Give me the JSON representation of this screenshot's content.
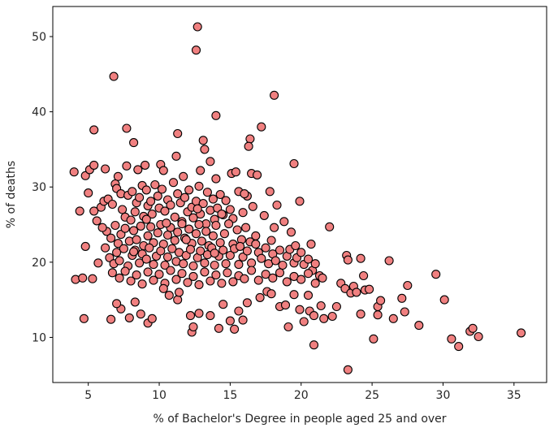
{
  "chart_data": {
    "type": "scatter",
    "title": "",
    "xlabel": "% of Bachelor's Degree in people aged 25 and over",
    "ylabel": "% of deaths",
    "xlim": [
      2.5,
      37.3
    ],
    "ylim": [
      4.0,
      54.0
    ],
    "xticks": [
      5,
      10,
      15,
      20,
      25,
      30,
      35
    ],
    "yticks": [
      10,
      20,
      30,
      40,
      50
    ],
    "grid": false,
    "legend": "none",
    "marker_color": "#F08080",
    "marker_edge": "#000000",
    "points": [
      [
        12.7,
        51.3
      ],
      [
        12.6,
        48.2
      ],
      [
        6.8,
        44.7
      ],
      [
        18.1,
        42.2
      ],
      [
        14.0,
        39.5
      ],
      [
        5.4,
        37.6
      ],
      [
        7.7,
        37.8
      ],
      [
        11.3,
        37.1
      ],
      [
        17.2,
        38.0
      ],
      [
        13.1,
        36.2
      ],
      [
        16.4,
        36.4
      ],
      [
        8.2,
        35.9
      ],
      [
        13.2,
        35.0
      ],
      [
        16.3,
        35.4
      ],
      [
        11.2,
        34.1
      ],
      [
        19.5,
        33.1
      ],
      [
        13.6,
        33.4
      ],
      [
        4.0,
        32.0
      ],
      [
        4.8,
        31.5
      ],
      [
        5.1,
        32.3
      ],
      [
        5.4,
        32.9
      ],
      [
        6.2,
        32.4
      ],
      [
        7.1,
        31.4
      ],
      [
        7.7,
        32.8
      ],
      [
        8.5,
        32.3
      ],
      [
        9.0,
        32.9
      ],
      [
        10.1,
        33.0
      ],
      [
        10.3,
        32.2
      ],
      [
        11.7,
        31.4
      ],
      [
        12.9,
        32.2
      ],
      [
        14.0,
        31.1
      ],
      [
        15.1,
        31.8
      ],
      [
        15.4,
        32.0
      ],
      [
        16.5,
        31.8
      ],
      [
        16.9,
        31.6
      ],
      [
        4.4,
        26.8
      ],
      [
        5.0,
        29.2
      ],
      [
        5.6,
        25.5
      ],
      [
        5.9,
        27.3
      ],
      [
        6.1,
        28.1
      ],
      [
        6.4,
        28.4
      ],
      [
        6.7,
        27.7
      ],
      [
        6.9,
        30.4
      ],
      [
        7.0,
        29.8
      ],
      [
        7.3,
        29.1
      ],
      [
        7.4,
        27.0
      ],
      [
        7.6,
        26.0
      ],
      [
        7.8,
        28.9
      ],
      [
        8.0,
        25.6
      ],
      [
        8.1,
        29.4
      ],
      [
        8.3,
        26.7
      ],
      [
        8.4,
        27.9
      ],
      [
        8.6,
        28.6
      ],
      [
        8.8,
        30.2
      ],
      [
        8.9,
        26.1
      ],
      [
        9.1,
        29.6
      ],
      [
        9.2,
        27.5
      ],
      [
        9.4,
        28.1
      ],
      [
        9.5,
        26.4
      ],
      [
        9.7,
        30.3
      ],
      [
        9.9,
        28.8
      ],
      [
        10.0,
        27.2
      ],
      [
        10.2,
        29.7
      ],
      [
        10.4,
        26.8
      ],
      [
        10.6,
        28.3
      ],
      [
        10.8,
        27.6
      ],
      [
        11.0,
        30.6
      ],
      [
        11.1,
        26.0
      ],
      [
        11.3,
        29.1
      ],
      [
        11.5,
        27.9
      ],
      [
        11.6,
        25.4
      ],
      [
        11.8,
        28.6
      ],
      [
        12.0,
        26.7
      ],
      [
        12.1,
        29.6
      ],
      [
        12.3,
        27.3
      ],
      [
        12.4,
        25.9
      ],
      [
        12.6,
        28.1
      ],
      [
        12.8,
        30.1
      ],
      [
        12.9,
        26.4
      ],
      [
        13.1,
        27.8
      ],
      [
        13.3,
        25.1
      ],
      [
        13.4,
        29.3
      ],
      [
        13.6,
        26.9
      ],
      [
        13.8,
        28.4
      ],
      [
        13.9,
        25.7
      ],
      [
        14.1,
        27.2
      ],
      [
        14.3,
        29.0
      ],
      [
        14.5,
        26.3
      ],
      [
        14.7,
        28.2
      ],
      [
        15.0,
        27.0
      ],
      [
        15.2,
        25.8
      ],
      [
        15.6,
        29.4
      ],
      [
        15.9,
        26.6
      ],
      [
        16.2,
        28.8
      ],
      [
        16.6,
        27.4
      ],
      [
        6.3,
        24.1
      ],
      [
        6.6,
        23.2
      ],
      [
        6.9,
        24.9
      ],
      [
        7.1,
        22.5
      ],
      [
        7.3,
        23.7
      ],
      [
        7.6,
        24.5
      ],
      [
        7.9,
        22.8
      ],
      [
        8.2,
        24.2
      ],
      [
        8.4,
        23.0
      ],
      [
        8.7,
        24.8
      ],
      [
        8.9,
        22.2
      ],
      [
        9.2,
        23.5
      ],
      [
        9.4,
        24.7
      ],
      [
        9.6,
        22.6
      ],
      [
        9.9,
        23.9
      ],
      [
        10.1,
        25.0
      ],
      [
        10.3,
        22.4
      ],
      [
        10.6,
        23.6
      ],
      [
        10.8,
        24.6
      ],
      [
        11.1,
        22.9
      ],
      [
        11.3,
        24.0
      ],
      [
        11.6,
        25.1
      ],
      [
        11.8,
        23.2
      ],
      [
        12.1,
        24.4
      ],
      [
        12.3,
        22.5
      ],
      [
        12.6,
        23.8
      ],
      [
        12.8,
        25.0
      ],
      [
        13.0,
        22.8
      ],
      [
        13.3,
        24.1
      ],
      [
        13.5,
        22.2
      ],
      [
        13.8,
        23.5
      ],
      [
        14.0,
        24.9
      ],
      [
        14.3,
        22.6
      ],
      [
        14.6,
        23.8
      ],
      [
        14.9,
        25.1
      ],
      [
        15.2,
        22.4
      ],
      [
        15.5,
        24.3
      ],
      [
        15.8,
        23.0
      ],
      [
        16.1,
        24.6
      ],
      [
        16.4,
        22.7
      ],
      [
        6.2,
        21.9
      ],
      [
        6.5,
        20.6
      ],
      [
        6.8,
        19.8
      ],
      [
        7.0,
        21.3
      ],
      [
        7.2,
        20.2
      ],
      [
        7.5,
        21.8
      ],
      [
        7.8,
        19.5
      ],
      [
        8.1,
        20.9
      ],
      [
        8.3,
        21.6
      ],
      [
        8.6,
        19.9
      ],
      [
        8.8,
        21.1
      ],
      [
        9.1,
        20.4
      ],
      [
        9.3,
        21.9
      ],
      [
        9.6,
        19.7
      ],
      [
        9.8,
        20.8
      ],
      [
        10.1,
        21.5
      ],
      [
        10.4,
        19.6
      ],
      [
        10.6,
        20.7
      ],
      [
        10.9,
        21.8
      ],
      [
        11.2,
        20.1
      ],
      [
        11.4,
        21.3
      ],
      [
        11.7,
        19.8
      ],
      [
        11.9,
        20.9
      ],
      [
        12.2,
        21.7
      ],
      [
        12.4,
        19.5
      ],
      [
        12.7,
        20.6
      ],
      [
        12.9,
        21.5
      ],
      [
        13.2,
        19.9
      ],
      [
        13.4,
        21.0
      ],
      [
        13.7,
        21.9
      ],
      [
        13.9,
        19.6
      ],
      [
        14.2,
        20.8
      ],
      [
        14.5,
        21.6
      ],
      [
        14.7,
        19.8
      ],
      [
        15.0,
        20.9
      ],
      [
        15.3,
        21.8
      ],
      [
        15.6,
        19.7
      ],
      [
        15.9,
        20.7
      ],
      [
        16.2,
        21.5
      ],
      [
        16.5,
        19.9
      ],
      [
        16.8,
        22.4
      ],
      [
        17.0,
        21.3
      ],
      [
        17.2,
        20.5
      ],
      [
        17.5,
        21.9
      ],
      [
        17.7,
        19.8
      ],
      [
        18.0,
        21.1
      ],
      [
        18.2,
        20.2
      ],
      [
        18.5,
        21.6
      ],
      [
        18.7,
        19.6
      ],
      [
        19.0,
        20.8
      ],
      [
        19.2,
        21.7
      ],
      [
        19.5,
        19.9
      ],
      [
        19.7,
        20.6
      ],
      [
        20.0,
        21.3
      ],
      [
        20.2,
        19.7
      ],
      [
        20.5,
        20.4
      ],
      [
        20.8,
        18.9
      ],
      [
        21.0,
        19.8
      ],
      [
        21.3,
        18.2
      ],
      [
        21.5,
        17.9
      ],
      [
        6.7,
        18.6
      ],
      [
        7.2,
        17.9
      ],
      [
        7.6,
        18.8
      ],
      [
        8.0,
        17.5
      ],
      [
        8.4,
        18.3
      ],
      [
        8.8,
        17.1
      ],
      [
        9.2,
        18.7
      ],
      [
        9.6,
        17.6
      ],
      [
        10.0,
        18.4
      ],
      [
        10.4,
        17.2
      ],
      [
        10.8,
        18.9
      ],
      [
        11.2,
        17.7
      ],
      [
        11.6,
        18.5
      ],
      [
        12.0,
        17.3
      ],
      [
        12.4,
        18.1
      ],
      [
        12.8,
        17.0
      ],
      [
        13.2,
        18.7
      ],
      [
        13.6,
        17.5
      ],
      [
        14.0,
        18.3
      ],
      [
        14.4,
        17.2
      ],
      [
        14.8,
        18.6
      ],
      [
        15.2,
        17.4
      ],
      [
        15.6,
        18.2
      ],
      [
        16.0,
        17.8
      ],
      [
        16.5,
        18.9
      ],
      [
        17.0,
        17.6
      ],
      [
        17.5,
        18.4
      ],
      [
        18.0,
        17.9
      ],
      [
        18.5,
        18.6
      ],
      [
        19.0,
        17.4
      ],
      [
        19.5,
        18.1
      ],
      [
        20.0,
        17.7
      ],
      [
        20.5,
        18.5
      ],
      [
        21.0,
        17.2
      ],
      [
        4.1,
        17.7
      ],
      [
        4.6,
        17.9
      ],
      [
        5.3,
        17.8
      ],
      [
        4.8,
        22.1
      ],
      [
        5.4,
        26.8
      ],
      [
        6.0,
        24.6
      ],
      [
        5.7,
        19.9
      ],
      [
        4.7,
        12.5
      ],
      [
        6.6,
        12.4
      ],
      [
        7.3,
        13.8
      ],
      [
        7.0,
        14.5
      ],
      [
        7.9,
        12.6
      ],
      [
        8.3,
        14.7
      ],
      [
        8.7,
        13.1
      ],
      [
        9.2,
        11.9
      ],
      [
        9.5,
        12.5
      ],
      [
        10.3,
        16.5
      ],
      [
        10.7,
        15.6
      ],
      [
        11.3,
        15.0
      ],
      [
        11.4,
        16.0
      ],
      [
        12.2,
        12.9
      ],
      [
        12.3,
        10.7
      ],
      [
        12.4,
        11.4
      ],
      [
        12.8,
        13.2
      ],
      [
        13.6,
        12.9
      ],
      [
        14.2,
        11.2
      ],
      [
        14.5,
        14.4
      ],
      [
        15.0,
        12.2
      ],
      [
        15.3,
        11.1
      ],
      [
        15.6,
        13.5
      ],
      [
        15.9,
        12.3
      ],
      [
        16.2,
        14.6
      ],
      [
        17.1,
        15.3
      ],
      [
        17.6,
        16.1
      ],
      [
        17.9,
        15.8
      ],
      [
        18.5,
        14.1
      ],
      [
        18.9,
        14.3
      ],
      [
        19.1,
        11.4
      ],
      [
        19.5,
        15.7
      ],
      [
        19.9,
        13.7
      ],
      [
        20.2,
        12.1
      ],
      [
        20.5,
        15.6
      ],
      [
        20.6,
        13.5
      ],
      [
        20.9,
        12.9
      ],
      [
        20.9,
        9.0
      ],
      [
        21.4,
        14.2
      ],
      [
        21.6,
        12.5
      ],
      [
        22.2,
        12.8
      ],
      [
        22.0,
        24.7
      ],
      [
        22.5,
        14.1
      ],
      [
        22.8,
        17.2
      ],
      [
        23.1,
        16.5
      ],
      [
        23.2,
        20.9
      ],
      [
        23.3,
        20.3
      ],
      [
        23.5,
        15.9
      ],
      [
        23.7,
        16.8
      ],
      [
        23.9,
        16.0
      ],
      [
        24.2,
        13.1
      ],
      [
        24.2,
        20.5
      ],
      [
        24.4,
        18.2
      ],
      [
        24.5,
        16.3
      ],
      [
        24.8,
        16.4
      ],
      [
        25.1,
        9.8
      ],
      [
        25.4,
        14.1
      ],
      [
        25.4,
        13.0
      ],
      [
        25.6,
        14.9
      ],
      [
        26.2,
        20.2
      ],
      [
        26.5,
        12.5
      ],
      [
        27.1,
        15.2
      ],
      [
        27.3,
        13.4
      ],
      [
        27.5,
        16.9
      ],
      [
        28.3,
        11.6
      ],
      [
        29.5,
        18.4
      ],
      [
        30.1,
        15.0
      ],
      [
        30.6,
        9.8
      ],
      [
        31.1,
        8.8
      ],
      [
        31.9,
        10.8
      ],
      [
        32.1,
        11.2
      ],
      [
        32.5,
        10.1
      ],
      [
        35.5,
        10.6
      ],
      [
        23.3,
        5.7
      ],
      [
        8.2,
        21.4
      ],
      [
        9.1,
        25.7
      ],
      [
        10.5,
        25.2
      ],
      [
        11.9,
        23.0
      ],
      [
        12.7,
        27.1
      ],
      [
        13.9,
        21.2
      ],
      [
        14.4,
        26.4
      ],
      [
        15.7,
        22.1
      ],
      [
        16.8,
        23.5
      ],
      [
        17.9,
        22.9
      ],
      [
        18.3,
        27.6
      ],
      [
        18.8,
        25.4
      ],
      [
        19.3,
        24.0
      ],
      [
        19.9,
        28.1
      ],
      [
        17.4,
        26.2
      ],
      [
        18.1,
        24.6
      ],
      [
        19.6,
        22.2
      ],
      [
        20.7,
        22.4
      ],
      [
        16.0,
        29.1
      ],
      [
        17.8,
        29.4
      ]
    ]
  }
}
